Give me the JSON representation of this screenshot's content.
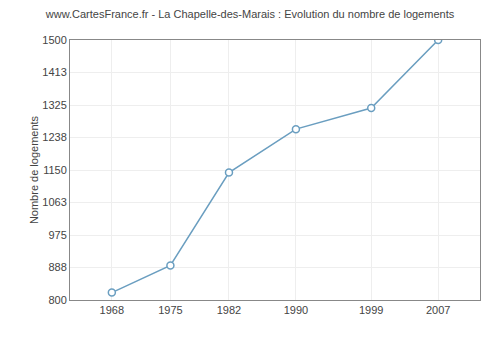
{
  "chart_data": {
    "type": "line",
    "title": "www.CartesFrance.fr - La Chapelle-des-Marais : Evolution du nombre de logements",
    "ylabel": "Nombre de logements",
    "x": [
      1968,
      1975,
      1982,
      1990,
      1999,
      2007
    ],
    "values": [
      820,
      893,
      1143,
      1260,
      1317,
      1500
    ],
    "color": "#6a9ec0",
    "marker": "circle",
    "xlim": [
      1963,
      2012
    ],
    "ylim": [
      800,
      1500
    ],
    "xticks": [
      1968,
      1975,
      1982,
      1990,
      1999,
      2007
    ],
    "yticks": [
      800,
      888,
      975,
      1063,
      1150,
      1238,
      1325,
      1413,
      1500
    ],
    "grid": true
  }
}
